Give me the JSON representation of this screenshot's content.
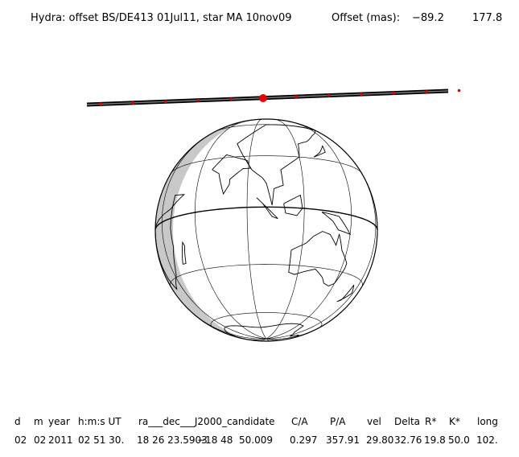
{
  "header": {
    "title": "Hydra: offset BS/DE413 01Jul11, star MA 10nov09",
    "offset_label": "Offset (mas):",
    "offset_values": [
      "−89.2",
      "177.8"
    ]
  },
  "table": {
    "columns": [
      "d",
      "m",
      "year",
      "h:m:s UT",
      "ra___dec___J2000_candidate",
      "C/A",
      "P/A",
      "vel",
      "Delta",
      "R*",
      "K*",
      "long"
    ],
    "row": [
      "02",
      "02",
      "2011",
      "02 51 30.",
      "18 26 23.5903",
      "−18 48  50.009",
      "0.297",
      "357.91",
      "29.80",
      "32.76",
      "19.8",
      "50.0",
      "102."
    ]
  }
}
